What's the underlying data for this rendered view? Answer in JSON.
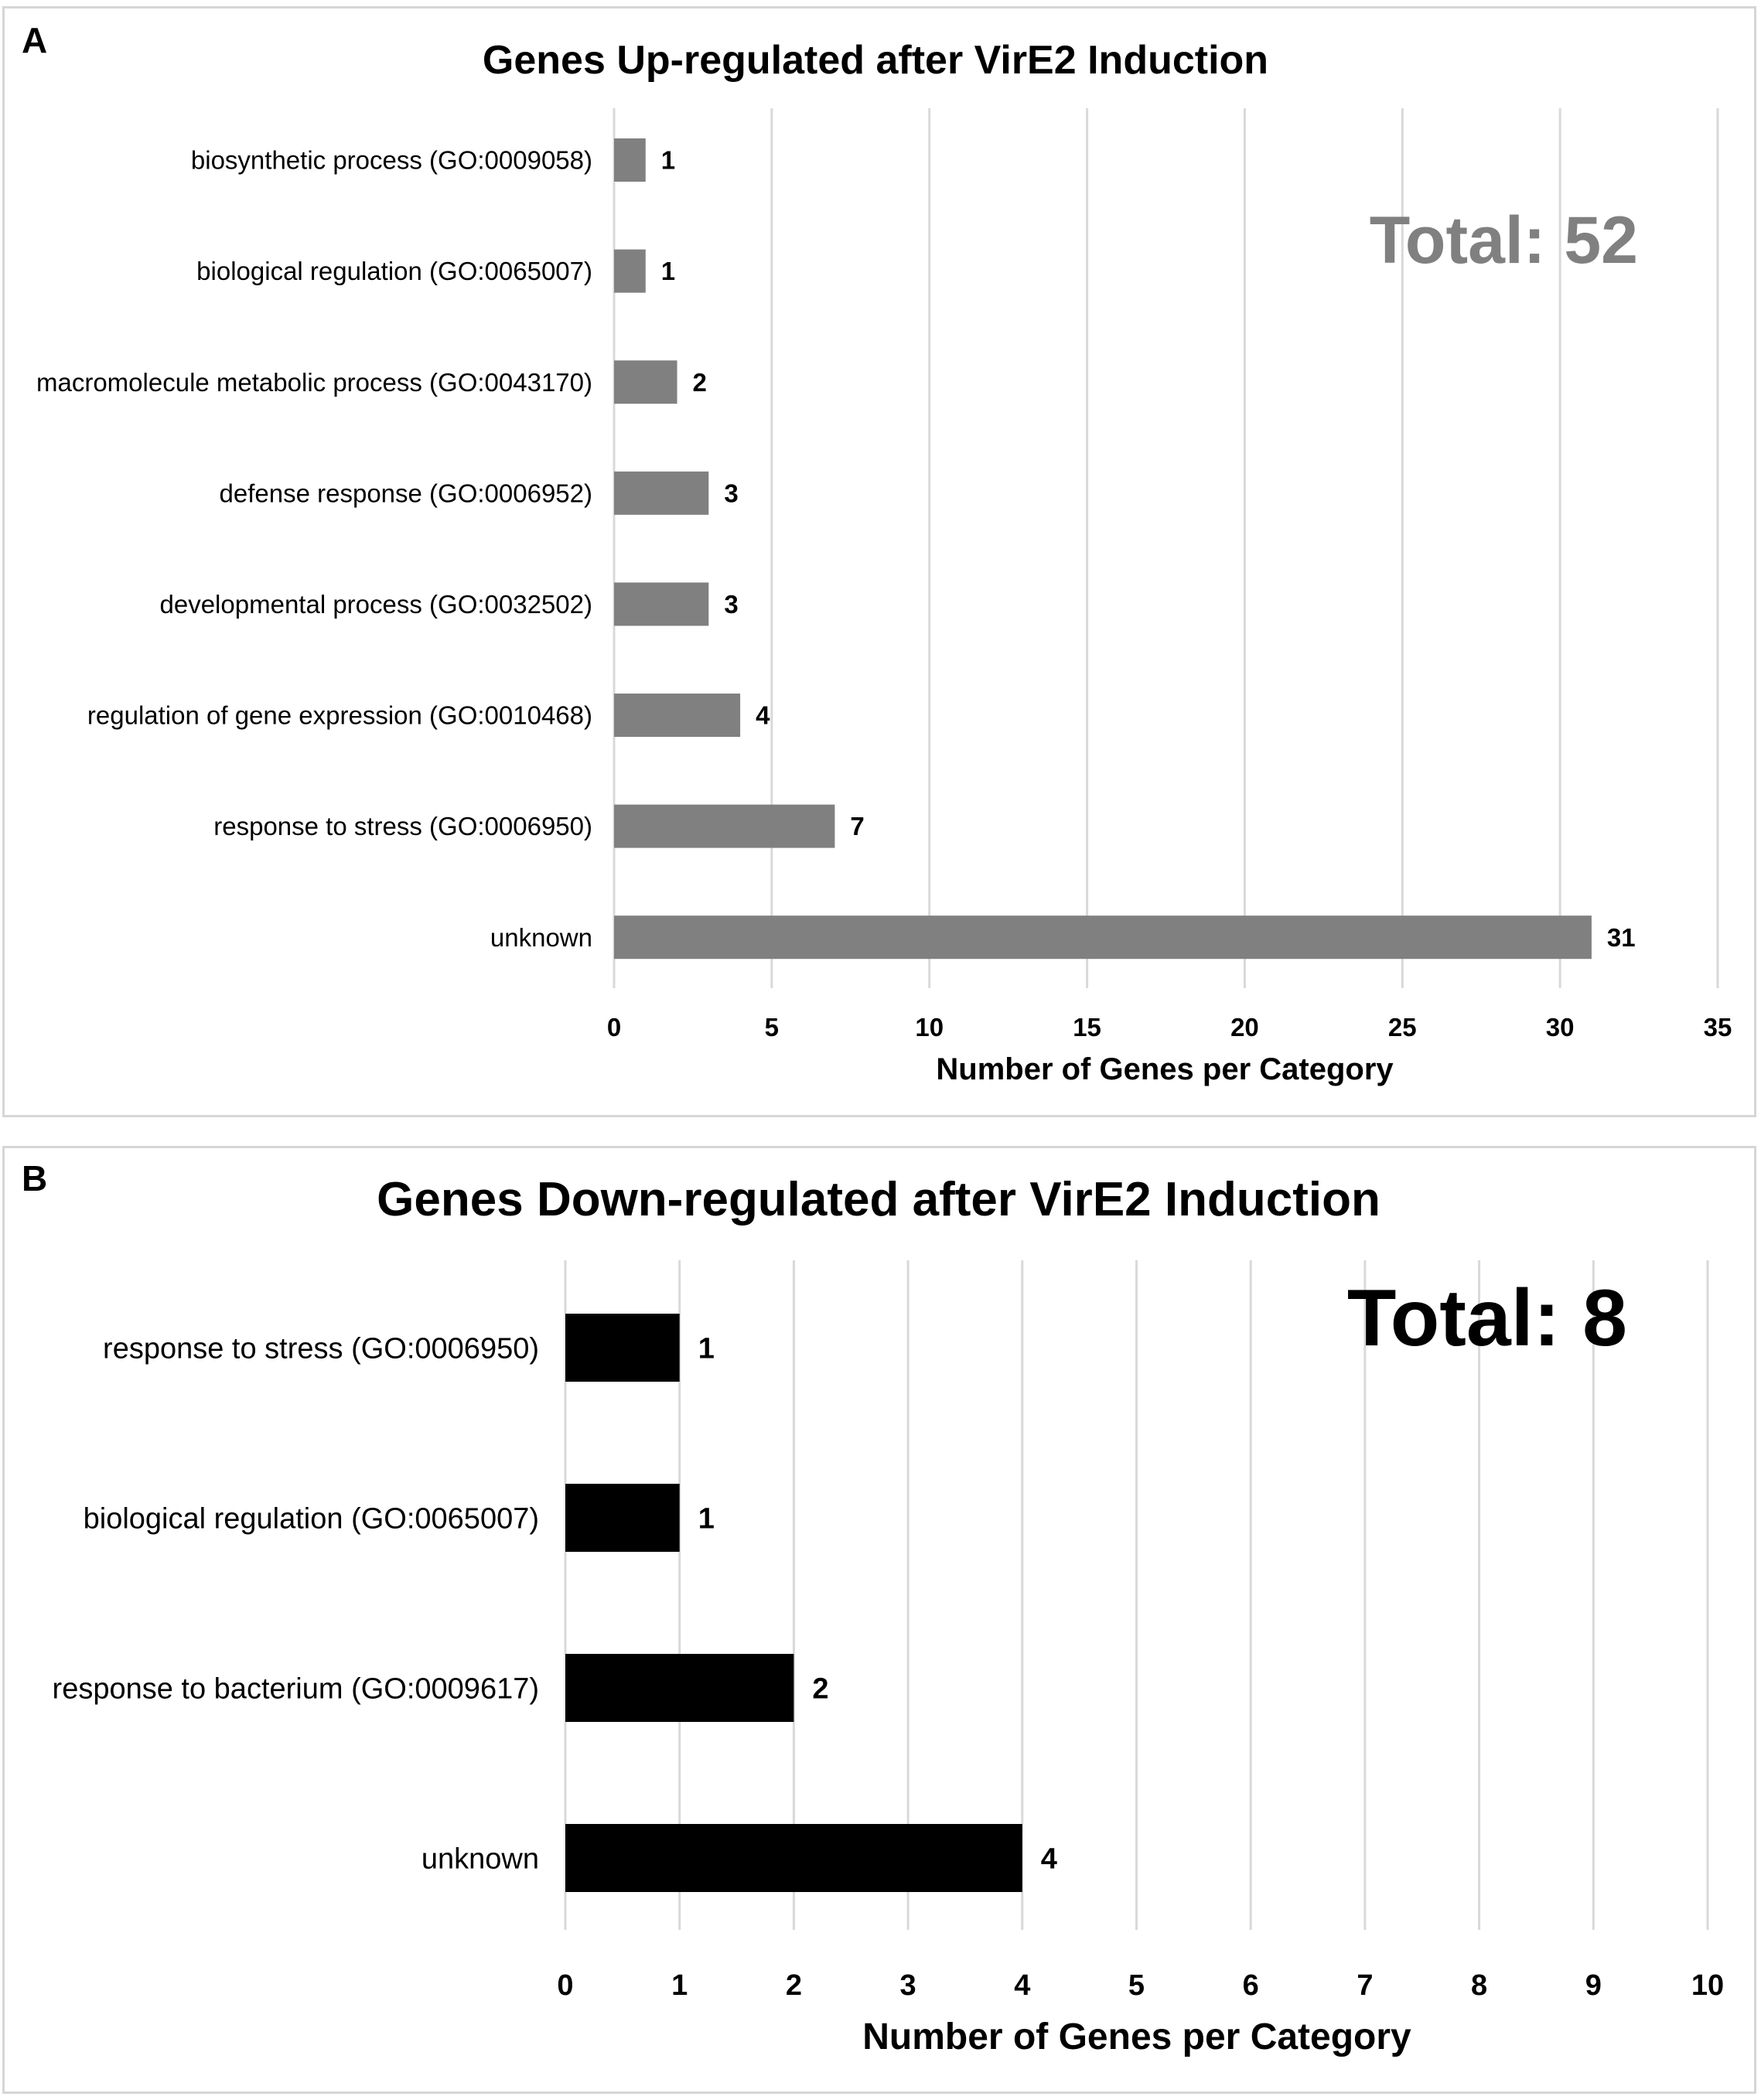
{
  "chart_data": [
    {
      "type": "bar",
      "orientation": "horizontal",
      "panel_label": "A",
      "title": "Genes Up-regulated after VirE2 Induction",
      "categories": [
        "biosynthetic process (GO:0009058)",
        "biological regulation (GO:0065007)",
        "macromolecule metabolic process (GO:0043170)",
        "defense response (GO:0006952)",
        "developmental process (GO:0032502)",
        "regulation of gene expression (GO:0010468)",
        "response to stress (GO:0006950)",
        "unknown"
      ],
      "values": [
        1,
        1,
        2,
        3,
        3,
        4,
        7,
        31
      ],
      "data_labels": [
        "1",
        "1",
        "2",
        "3",
        "3",
        "4",
        "7",
        "31"
      ],
      "xlabel": "Number of Genes per Category",
      "ylabel": "",
      "xlim": [
        0,
        35
      ],
      "xticks": [
        0,
        5,
        10,
        15,
        20,
        25,
        30,
        35
      ],
      "xtick_labels": [
        "0",
        "5",
        "10",
        "15",
        "20",
        "25",
        "30",
        "35"
      ],
      "grid": true,
      "annotation": "Total: 52",
      "bar_color": "#808080",
      "annotation_color": "#808080"
    },
    {
      "type": "bar",
      "orientation": "horizontal",
      "panel_label": "B",
      "title": "Genes Down-regulated after VirE2 Induction",
      "categories": [
        "response to stress (GO:0006950)",
        "biological regulation (GO:0065007)",
        "response to bacterium (GO:0009617)",
        "unknown"
      ],
      "values": [
        1,
        1,
        2,
        4
      ],
      "data_labels": [
        "1",
        "1",
        "2",
        "4"
      ],
      "xlabel": "Number of Genes per Category",
      "ylabel": "",
      "xlim": [
        0,
        10
      ],
      "xticks": [
        0,
        1,
        2,
        3,
        4,
        5,
        6,
        7,
        8,
        9,
        10
      ],
      "xtick_labels": [
        "0",
        "1",
        "2",
        "3",
        "4",
        "5",
        "6",
        "7",
        "8",
        "9",
        "10"
      ],
      "grid": true,
      "annotation": "Total: 8",
      "bar_color": "#000000",
      "annotation_color": "#000000"
    }
  ]
}
